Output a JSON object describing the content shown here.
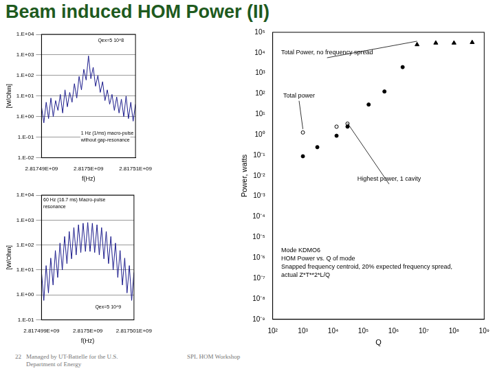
{
  "title": "Beam induced HOM Power (II)",
  "footer": [
    "22",
    "Managed by UT-Battelle for the U.S. Department of Energy",
    "SPL HOM Workshop"
  ],
  "chart_data": [
    {
      "type": "line",
      "log": "y",
      "grid": true,
      "color": "#1c1c8c",
      "x_label": "f(Hz)",
      "y_label": "[W/Ohm]",
      "annotations": [
        "Qex=5 10^8",
        "1 Hz (1/ms) macro-pulse",
        "without gap-resonance"
      ],
      "x": [
        2817490000,
        2817490500,
        2817491000,
        2817491500,
        2817492000,
        2817492500,
        2817493000,
        2817493500,
        2817494000,
        2817494500,
        2817495000,
        2817495500,
        2817496000,
        2817496500,
        2817497000,
        2817497500,
        2817498000,
        2817498500,
        2817499000,
        2817499500,
        2817500000,
        2817500500,
        2817501000,
        2817501500,
        2817502000,
        2817502500,
        2817503000,
        2817503500,
        2817504000,
        2817504500,
        2817505000,
        2817505500,
        2817506000,
        2817506500,
        2817507000,
        2817507500,
        2817508000,
        2817508500,
        2817509000,
        2817509500,
        2817510000
      ],
      "values": [
        3,
        0.5,
        5,
        0.8,
        8,
        1,
        6,
        2,
        12,
        1.5,
        20,
        3,
        15,
        5,
        40,
        8,
        90,
        20,
        200,
        60,
        900,
        70,
        250,
        30,
        100,
        15,
        50,
        6,
        20,
        4,
        12,
        2,
        9,
        1.5,
        7,
        1,
        10,
        0.8,
        5,
        0.6,
        4
      ],
      "xlim": [
        2817490000,
        2817510000
      ],
      "xticks": [
        {
          "value": 2817490000,
          "label": "2.81749E+09"
        },
        {
          "value": 2817500000,
          "label": "2.8175E+09"
        },
        {
          "value": 2817510000,
          "label": "2.81751E+09"
        }
      ],
      "ylim": [
        0.01,
        10000
      ],
      "yticks": [
        {
          "value": 0.01,
          "label": "1.E-02"
        },
        {
          "value": 0.1,
          "label": "1.E-01"
        },
        {
          "value": 1,
          "label": "1.E+00"
        },
        {
          "value": 10,
          "label": "1.E+01"
        },
        {
          "value": 100,
          "label": "1.E+02"
        },
        {
          "value": 1000,
          "label": "1.E+03"
        },
        {
          "value": 10000,
          "label": "1.E+04"
        }
      ]
    },
    {
      "type": "line",
      "log": "y",
      "grid": true,
      "color": "#1c1c8c",
      "x_label": "f(Hz)",
      "y_label": "[W/Ohm]",
      "annotations": [
        "60 Hz (16.7 ms) Macro-pulse",
        "resonance",
        "Qex=5 10^9"
      ],
      "x": [
        2817499000,
        2817499050,
        2817499100,
        2817499150,
        2817499200,
        2817499250,
        2817499300,
        2817499350,
        2817499400,
        2817499450,
        2817499500,
        2817499550,
        2817499600,
        2817499650,
        2817499700,
        2817499750,
        2817499800,
        2817499850,
        2817499900,
        2817499950,
        2817500000,
        2817500050,
        2817500100,
        2817500150,
        2817500200,
        2817500250,
        2817500300,
        2817500350,
        2817500400,
        2817500450,
        2817500500,
        2817500550,
        2817500600,
        2817500650,
        2817500700,
        2817500750,
        2817500800,
        2817500850,
        2817500900,
        2817500950,
        2817501000
      ],
      "values": [
        8,
        0.6,
        15,
        1.2,
        30,
        2.5,
        60,
        5,
        120,
        10,
        220,
        18,
        350,
        28,
        500,
        40,
        650,
        50,
        750,
        55,
        800,
        55,
        750,
        50,
        650,
        40,
        500,
        28,
        350,
        18,
        220,
        10,
        120,
        5,
        60,
        2.5,
        30,
        1.2,
        15,
        0.6,
        8
      ],
      "xlim": [
        2817499000,
        2817501000
      ],
      "xticks": [
        {
          "value": 2817499000,
          "label": "2.817499E+09"
        },
        {
          "value": 2817500000,
          "label": "2.8175E+09"
        },
        {
          "value": 2817501000,
          "label": "2.817501E+09"
        }
      ],
      "ylim": [
        0.1,
        10000
      ],
      "yticks": [
        {
          "value": 0.1,
          "label": "1.E-01"
        },
        {
          "value": 1,
          "label": "1.E+00"
        },
        {
          "value": 10,
          "label": "1.E+01"
        },
        {
          "value": 100,
          "label": "1.E+02"
        },
        {
          "value": 1000,
          "label": "1.E+03"
        },
        {
          "value": 10000,
          "label": "1.E+04"
        }
      ]
    },
    {
      "type": "scatter",
      "log": true,
      "grid": false,
      "color": "#000000",
      "x_label": "Q",
      "y_label": "Power, watts",
      "annotations": [
        "Mode KDMO6",
        "HOM Power vs. Q of mode",
        "Snapped frequency centroid, 20% expected frequency spread,",
        "actual Z*T**2*L/Q"
      ],
      "series": [
        {
          "name": "Total Power, no frequency spread",
          "marker": "triangle",
          "x": [
            6000000,
            25000000,
            100000000,
            400000000
          ],
          "values": [
            25000,
            30000,
            30000,
            32000
          ]
        },
        {
          "name": "Total power",
          "marker": "open_circle",
          "x": [
            1000,
            13000,
            30000
          ],
          "values": [
            1.3,
            2.5,
            3.5
          ]
        },
        {
          "name": "Highest power, 1 cavity",
          "marker": "circle",
          "x": [
            1000,
            3000,
            13000,
            30000,
            150000,
            500000,
            2000000
          ],
          "values": [
            0.09,
            0.25,
            0.9,
            2.5,
            30,
            130,
            2000
          ]
        }
      ],
      "xlim": [
        100,
        1000000000
      ],
      "xticks": [
        {
          "value": 100,
          "label": "10²"
        },
        {
          "value": 1000,
          "label": "10³"
        },
        {
          "value": 10000,
          "label": "10⁴"
        },
        {
          "value": 100000,
          "label": "10⁵"
        },
        {
          "value": 1000000,
          "label": "10⁶"
        },
        {
          "value": 10000000,
          "label": "10⁷"
        },
        {
          "value": 100000000,
          "label": "10⁸"
        },
        {
          "value": 1000000000,
          "label": "10⁹"
        }
      ],
      "ylim": [
        1e-09,
        100000
      ],
      "yticks": [
        {
          "value": 1e-09,
          "label": "10⁻⁹"
        },
        {
          "value": 1e-08,
          "label": "10⁻⁸"
        },
        {
          "value": 1e-07,
          "label": "10⁻⁷"
        },
        {
          "value": 1e-06,
          "label": "10⁻⁶"
        },
        {
          "value": 1e-05,
          "label": "10⁻⁵"
        },
        {
          "value": 0.0001,
          "label": "10⁻⁴"
        },
        {
          "value": 0.001,
          "label": "10⁻³"
        },
        {
          "value": 0.01,
          "label": "10⁻²"
        },
        {
          "value": 0.1,
          "label": "10⁻¹"
        },
        {
          "value": 1,
          "label": "10⁰"
        },
        {
          "value": 10,
          "label": "10¹"
        },
        {
          "value": 100,
          "label": "10²"
        },
        {
          "value": 1000,
          "label": "10³"
        },
        {
          "value": 10000,
          "label": "10⁴"
        },
        {
          "value": 100000,
          "label": "10⁵"
        }
      ]
    }
  ]
}
